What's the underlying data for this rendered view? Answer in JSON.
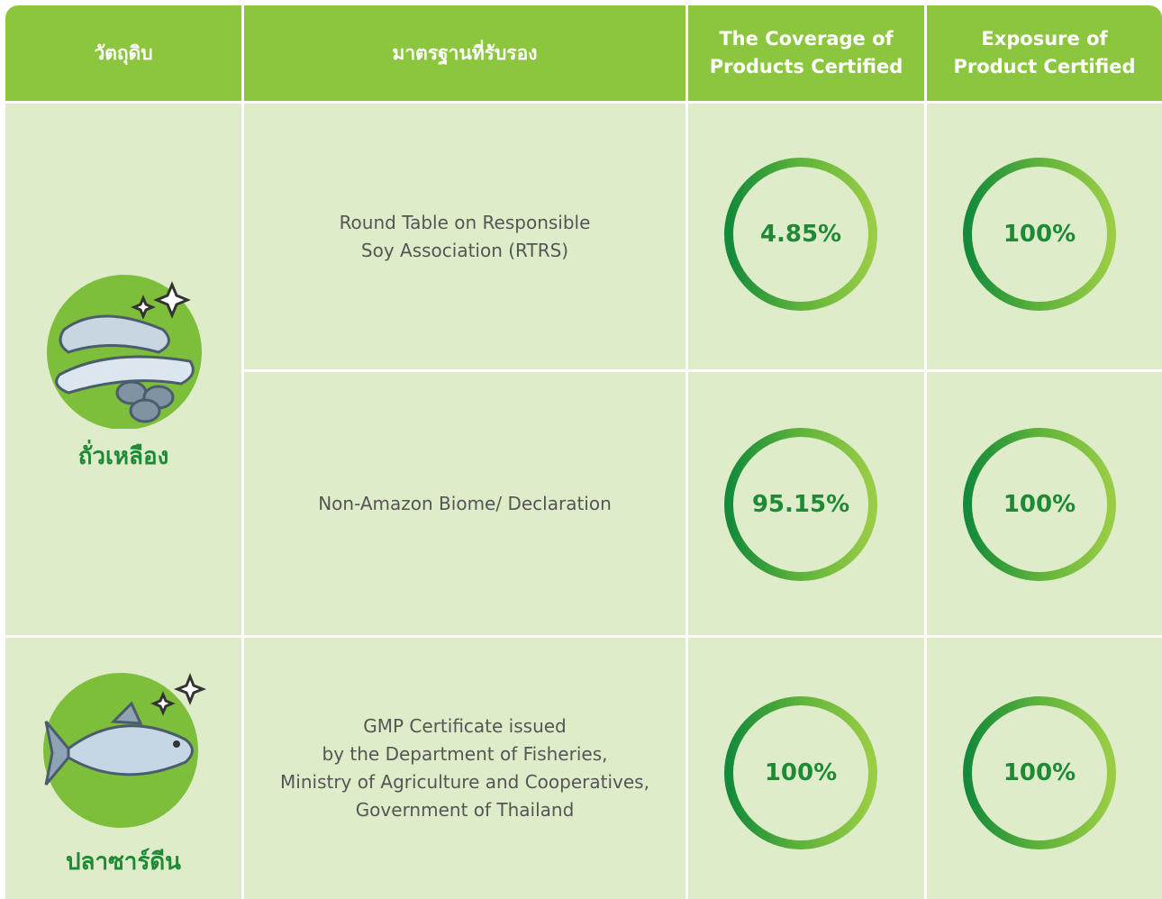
{
  "header": {
    "columns": [
      [
        "วัตถุดิบ"
      ],
      [
        "มาตรฐานที่รับรอง"
      ],
      [
        "The Coverage of",
        "Products Certified"
      ],
      [
        "Exposure of",
        "Product Certified"
      ]
    ]
  },
  "rows": [
    {
      "material": "ถั่วเหลือง",
      "standards": [
        {
          "name": [
            "Round Table on Responsible",
            "Soy Association (RTRS)"
          ],
          "coverage": "4.85%",
          "exposure": "100%"
        },
        {
          "name": [
            "Non-Amazon Biome/ Declaration"
          ],
          "coverage": "95.15%",
          "exposure": "100%"
        }
      ]
    },
    {
      "material": "ปลาซาร์ดีน",
      "standards": [
        {
          "name": [
            "GMP Certificate issued",
            "by the Department of Fisheries,",
            "Ministry of Agriculture and Cooperatives,",
            "Government of Thailand"
          ],
          "coverage": "100%",
          "exposure": "100%"
        }
      ]
    }
  ]
}
